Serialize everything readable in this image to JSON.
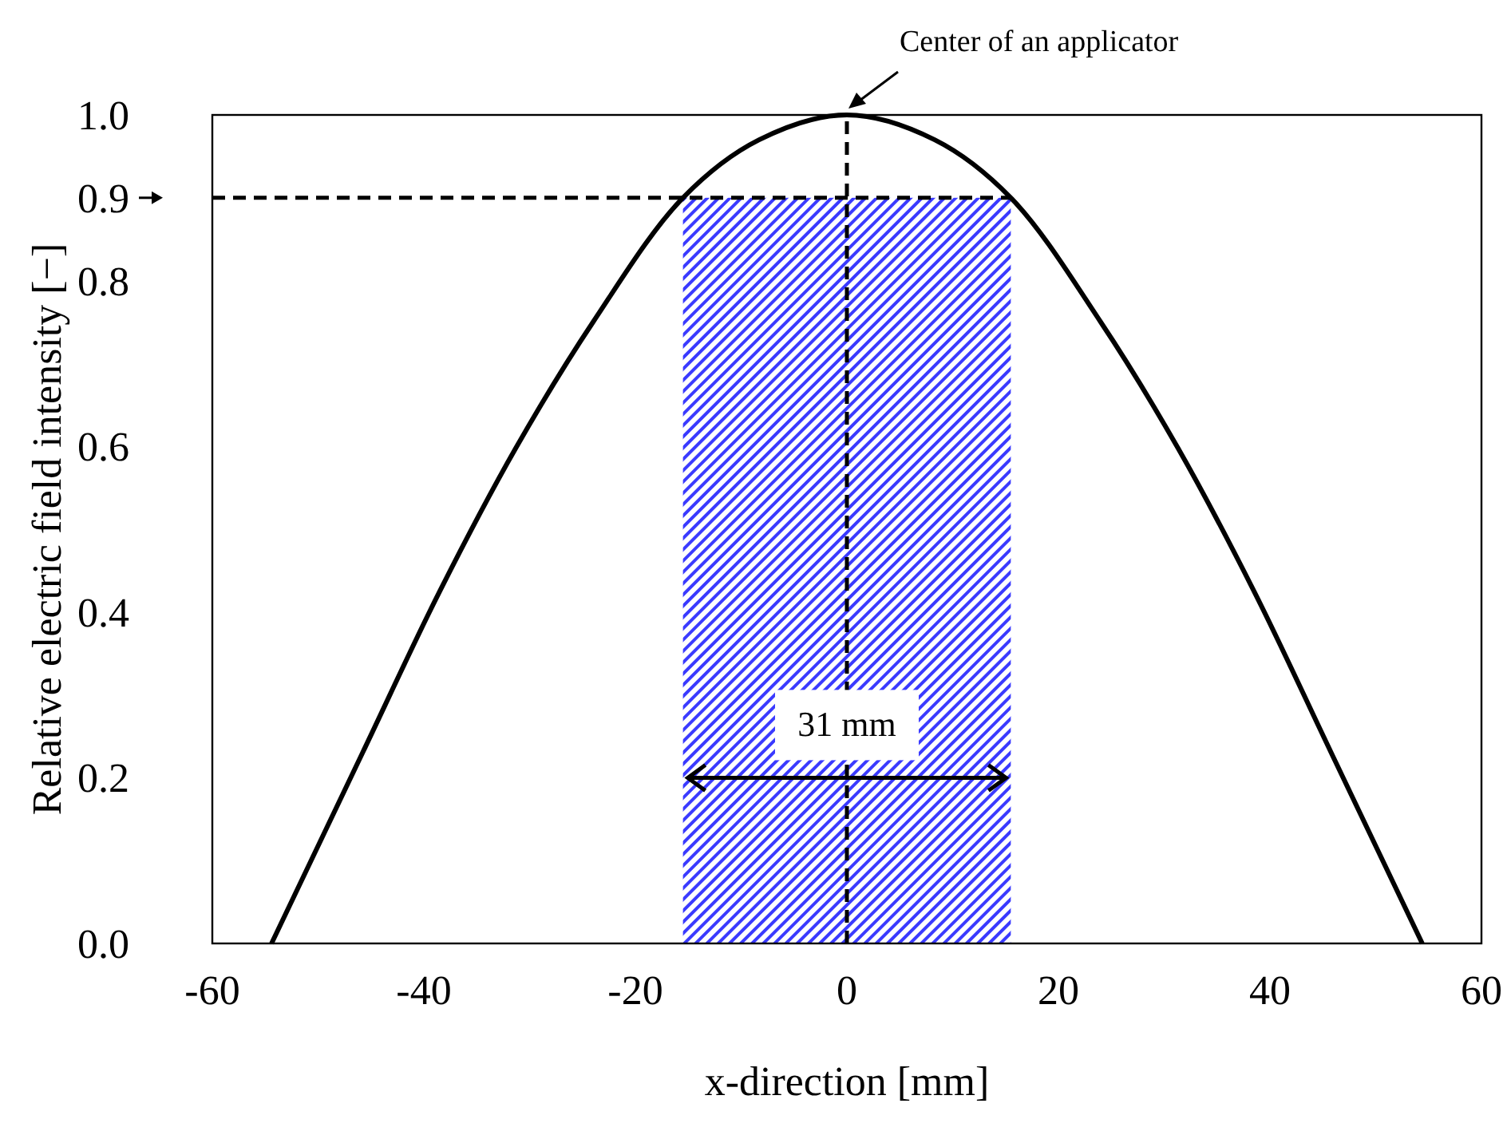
{
  "chart_data": {
    "type": "line",
    "xlabel": "x-direction [mm]",
    "ylabel": "Relative electric field intensity [−]",
    "x": [
      -54.4,
      -45.8,
      -38.5,
      -31.3,
      -24.0,
      -15.5,
      -8.3,
      0,
      8.3,
      15.5,
      24.0,
      31.3,
      38.5,
      45.8,
      54.4
    ],
    "series": [
      {
        "color": "#000000",
        "values": [
          0,
          0.23,
          0.425,
          0.598,
          0.75,
          0.9,
          0.97,
          1.0,
          0.97,
          0.9,
          0.75,
          0.598,
          0.425,
          0.23,
          0
        ]
      }
    ],
    "xlim": [
      -60,
      60
    ],
    "xticks": [
      -60,
      -40,
      -20,
      0,
      20,
      40,
      60
    ],
    "ylim": [
      0,
      1.0
    ],
    "yticks": [
      {
        "value": 0,
        "label": "0.0"
      },
      {
        "value": 0.2,
        "label": "0.2"
      },
      {
        "value": 0.4,
        "label": "0.4"
      },
      {
        "value": 0.6,
        "label": "0.6"
      },
      {
        "value": 0.8,
        "label": "0.8"
      },
      {
        "value": 0.9,
        "label": "0.9"
      },
      {
        "value": 1.0,
        "label": "1.0"
      }
    ],
    "grid": false,
    "marker": "none",
    "line_style": "solid",
    "ref_lines": [
      {
        "axis": "y",
        "value": 0.9,
        "color": "#000000",
        "line_style": "dashed"
      },
      {
        "axis": "x",
        "value": 0,
        "color": "#000000",
        "line_style": "dashed"
      }
    ],
    "bands": [
      {
        "axis": "x",
        "from": -15.5,
        "to": 15.5,
        "color": "#3a3aff"
      }
    ],
    "annotations": [
      {
        "text": "Center of an applicator",
        "x": 0,
        "y": 1.0
      },
      {
        "text": "31 mm",
        "x": 0,
        "y": 0.2
      }
    ]
  }
}
